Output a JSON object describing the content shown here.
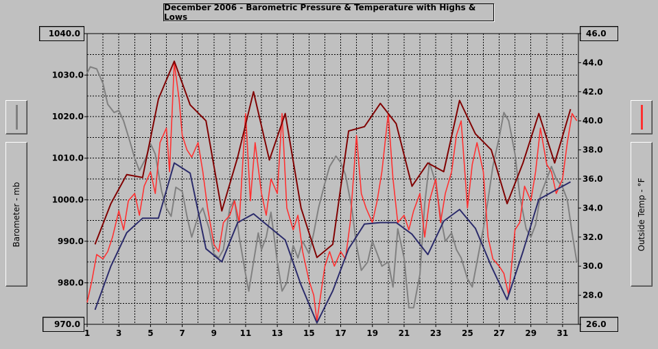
{
  "chart_data": {
    "type": "line",
    "title": "December 2006 - Barometric Pressure & Temperature with Highs & Lows",
    "left_axis": {
      "label": "Barometer - mb",
      "ylim": [
        970,
        1040
      ],
      "ticks": [
        "970.0",
        "980.0",
        "990.0",
        "1000.0",
        "1010.0",
        "1020.0",
        "1030.0",
        "1040.0"
      ],
      "tick_values": [
        970,
        980,
        990,
        1000,
        1010,
        1020,
        1030,
        1040
      ]
    },
    "right_axis": {
      "label": "Outside Temp - °F",
      "ylim": [
        26,
        46
      ],
      "ticks": [
        "26.0",
        "28.0",
        "30.0",
        "32.0",
        "34.0",
        "36.0",
        "38.0",
        "40.0",
        "42.0",
        "44.0",
        "46.0"
      ],
      "tick_values": [
        26,
        28,
        30,
        32,
        34,
        36,
        38,
        40,
        42,
        44,
        46
      ]
    },
    "x_axis": {
      "xlim": [
        1,
        32
      ],
      "ticks": [
        "1",
        "3",
        "5",
        "7",
        "9",
        "11",
        "13",
        "15",
        "17",
        "19",
        "21",
        "23",
        "25",
        "27",
        "29",
        "31"
      ],
      "tick_values": [
        1,
        3,
        5,
        7,
        9,
        11,
        13,
        15,
        17,
        19,
        21,
        23,
        25,
        27,
        29,
        31
      ]
    },
    "grid": true,
    "colors": {
      "barometer": "#808080",
      "temperature": "#ff3030",
      "high": "#800000",
      "low": "#2a2a6a",
      "grid": "#000000"
    },
    "series": [
      {
        "name": "Barometer",
        "axis": "left",
        "points": [
          [
            1.0,
            1030.5
          ],
          [
            1.2,
            1032
          ],
          [
            1.6,
            1031.5
          ],
          [
            2.0,
            1028
          ],
          [
            2.3,
            1023
          ],
          [
            2.7,
            1021
          ],
          [
            3.0,
            1021.5
          ],
          [
            3.3,
            1019
          ],
          [
            3.7,
            1014
          ],
          [
            4.0,
            1010
          ],
          [
            4.3,
            1007
          ],
          [
            4.7,
            1010
          ],
          [
            5.0,
            1013.5
          ],
          [
            5.3,
            1011
          ],
          [
            5.7,
            1002
          ],
          [
            6.0,
            998
          ],
          [
            6.3,
            996
          ],
          [
            6.6,
            1003
          ],
          [
            7.0,
            1002
          ],
          [
            7.3,
            996
          ],
          [
            7.6,
            991
          ],
          [
            8.0,
            996
          ],
          [
            8.3,
            998
          ],
          [
            8.7,
            993
          ],
          [
            9.0,
            987
          ],
          [
            9.3,
            986
          ],
          [
            9.6,
            988
          ],
          [
            10.0,
            998
          ],
          [
            10.3,
            1000
          ],
          [
            10.6,
            991
          ],
          [
            11.0,
            982
          ],
          [
            11.2,
            978
          ],
          [
            11.5,
            985
          ],
          [
            11.8,
            992
          ],
          [
            12.0,
            988
          ],
          [
            12.3,
            991
          ],
          [
            12.6,
            997
          ],
          [
            13.0,
            985
          ],
          [
            13.3,
            978
          ],
          [
            13.6,
            980
          ],
          [
            14.0,
            989
          ],
          [
            14.3,
            986
          ],
          [
            14.6,
            990
          ],
          [
            15.0,
            987
          ],
          [
            15.3,
            992
          ],
          [
            15.6,
            998
          ],
          [
            16.0,
            1004
          ],
          [
            16.3,
            1008
          ],
          [
            16.7,
            1010.5
          ],
          [
            17.0,
            1009
          ],
          [
            17.3,
            1006
          ],
          [
            17.7,
            998
          ],
          [
            18.0,
            989
          ],
          [
            18.3,
            983
          ],
          [
            18.7,
            985
          ],
          [
            19.0,
            990
          ],
          [
            19.3,
            987
          ],
          [
            19.6,
            984
          ],
          [
            20.0,
            985
          ],
          [
            20.3,
            979
          ],
          [
            20.6,
            993
          ],
          [
            21.0,
            986
          ],
          [
            21.3,
            974
          ],
          [
            21.6,
            974
          ],
          [
            22.0,
            982
          ],
          [
            22.3,
            999
          ],
          [
            22.6,
            1009
          ],
          [
            23.0,
            1004
          ],
          [
            23.3,
            996
          ],
          [
            23.6,
            990
          ],
          [
            24.0,
            992
          ],
          [
            24.3,
            988
          ],
          [
            24.6,
            986
          ],
          [
            25.0,
            981
          ],
          [
            25.3,
            979
          ],
          [
            25.6,
            985
          ],
          [
            26.0,
            993
          ],
          [
            26.3,
            1000
          ],
          [
            26.6,
            1008
          ],
          [
            27.0,
            1015
          ],
          [
            27.3,
            1021
          ],
          [
            27.6,
            1019
          ],
          [
            28.0,
            1011
          ],
          [
            28.3,
            1001
          ],
          [
            28.7,
            993
          ],
          [
            29.0,
            991
          ],
          [
            29.3,
            994
          ],
          [
            29.6,
            1001
          ],
          [
            30.0,
            1005
          ],
          [
            30.3,
            1008
          ],
          [
            30.6,
            1005
          ],
          [
            31.0,
            1003
          ],
          [
            31.3,
            1000
          ],
          [
            31.6,
            992
          ],
          [
            31.9,
            985
          ]
        ]
      },
      {
        "name": "Outside Temp",
        "axis": "right",
        "points": [
          [
            1.0,
            27.5
          ],
          [
            1.3,
            29.0
          ],
          [
            1.6,
            30.8
          ],
          [
            2.0,
            30.5
          ],
          [
            2.3,
            31.0
          ],
          [
            2.6,
            32.0
          ],
          [
            3.0,
            33.8
          ],
          [
            3.3,
            32.5
          ],
          [
            3.6,
            34.5
          ],
          [
            4.0,
            35.0
          ],
          [
            4.3,
            33.5
          ],
          [
            4.6,
            35.5
          ],
          [
            5.0,
            36.5
          ],
          [
            5.3,
            35.0
          ],
          [
            5.6,
            38.5
          ],
          [
            6.0,
            39.5
          ],
          [
            6.2,
            36.5
          ],
          [
            6.5,
            44.0
          ],
          [
            6.8,
            41.5
          ],
          [
            7.0,
            39.0
          ],
          [
            7.3,
            38.0
          ],
          [
            7.6,
            37.5
          ],
          [
            8.0,
            38.5
          ],
          [
            8.3,
            36.5
          ],
          [
            8.6,
            34.0
          ],
          [
            9.0,
            31.5
          ],
          [
            9.3,
            31.0
          ],
          [
            9.6,
            33.0
          ],
          [
            10.0,
            33.5
          ],
          [
            10.3,
            34.5
          ],
          [
            10.6,
            33.0
          ],
          [
            11.0,
            40.5
          ],
          [
            11.3,
            34.5
          ],
          [
            11.6,
            38.5
          ],
          [
            12.0,
            35.0
          ],
          [
            12.3,
            33.5
          ],
          [
            12.6,
            36.0
          ],
          [
            13.0,
            35.0
          ],
          [
            13.3,
            40.5
          ],
          [
            13.6,
            34.0
          ],
          [
            14.0,
            32.5
          ],
          [
            14.3,
            33.5
          ],
          [
            14.6,
            31.0
          ],
          [
            15.0,
            29.0
          ],
          [
            15.3,
            28.0
          ],
          [
            15.5,
            26.2
          ],
          [
            15.8,
            28.5
          ],
          [
            16.0,
            30.0
          ],
          [
            16.3,
            31.0
          ],
          [
            16.6,
            30.0
          ],
          [
            17.0,
            31.0
          ],
          [
            17.3,
            30.5
          ],
          [
            17.6,
            33.0
          ],
          [
            18.0,
            39.0
          ],
          [
            18.3,
            35.0
          ],
          [
            18.6,
            34.0
          ],
          [
            19.0,
            33.0
          ],
          [
            19.3,
            34.5
          ],
          [
            19.6,
            36.5
          ],
          [
            20.0,
            40.5
          ],
          [
            20.3,
            36.0
          ],
          [
            20.6,
            33.0
          ],
          [
            21.0,
            33.5
          ],
          [
            21.3,
            32.5
          ],
          [
            21.6,
            33.8
          ],
          [
            22.0,
            35.0
          ],
          [
            22.3,
            32.0
          ],
          [
            22.6,
            34.5
          ],
          [
            23.0,
            36.0
          ],
          [
            23.3,
            33.0
          ],
          [
            23.6,
            35.0
          ],
          [
            24.0,
            36.5
          ],
          [
            24.3,
            39.0
          ],
          [
            24.6,
            40.0
          ],
          [
            25.0,
            34.0
          ],
          [
            25.3,
            37.0
          ],
          [
            25.6,
            38.5
          ],
          [
            26.0,
            36.5
          ],
          [
            26.3,
            32.0
          ],
          [
            26.6,
            30.5
          ],
          [
            27.0,
            30.0
          ],
          [
            27.3,
            29.5
          ],
          [
            27.6,
            28.0
          ],
          [
            28.0,
            32.5
          ],
          [
            28.3,
            33.0
          ],
          [
            28.6,
            35.5
          ],
          [
            29.0,
            34.5
          ],
          [
            29.3,
            36.5
          ],
          [
            29.6,
            39.5
          ],
          [
            30.0,
            37.0
          ],
          [
            30.3,
            36.5
          ],
          [
            30.6,
            35.0
          ],
          [
            31.0,
            36.0
          ],
          [
            31.3,
            38.5
          ],
          [
            31.6,
            40.5
          ],
          [
            31.9,
            40.0
          ]
        ]
      },
      {
        "name": "High Temp",
        "axis": "right",
        "points": [
          [
            1.5,
            31.5
          ],
          [
            2.5,
            34.3
          ],
          [
            3.5,
            36.3
          ],
          [
            4.5,
            36.1
          ],
          [
            5.5,
            41.5
          ],
          [
            6.5,
            44.1
          ],
          [
            7.5,
            41.1
          ],
          [
            8.5,
            40.0
          ],
          [
            9.5,
            33.8
          ],
          [
            10.5,
            37.5
          ],
          [
            11.5,
            42.0
          ],
          [
            12.5,
            37.3
          ],
          [
            13.5,
            40.5
          ],
          [
            14.5,
            34.0
          ],
          [
            15.5,
            30.6
          ],
          [
            16.5,
            31.5
          ],
          [
            17.5,
            39.3
          ],
          [
            18.5,
            39.6
          ],
          [
            19.5,
            41.2
          ],
          [
            20.5,
            39.8
          ],
          [
            21.5,
            35.5
          ],
          [
            22.5,
            37.1
          ],
          [
            23.5,
            36.5
          ],
          [
            24.5,
            41.4
          ],
          [
            25.5,
            39.1
          ],
          [
            26.5,
            38.0
          ],
          [
            27.5,
            34.3
          ],
          [
            28.5,
            37.1
          ],
          [
            29.5,
            40.5
          ],
          [
            30.5,
            37.1
          ],
          [
            31.5,
            40.8
          ]
        ]
      },
      {
        "name": "Low Temp",
        "axis": "right",
        "points": [
          [
            1.5,
            27.0
          ],
          [
            2.5,
            30.0
          ],
          [
            3.5,
            32.3
          ],
          [
            4.5,
            33.3
          ],
          [
            5.5,
            33.3
          ],
          [
            6.5,
            37.1
          ],
          [
            7.5,
            36.4
          ],
          [
            8.5,
            31.2
          ],
          [
            9.5,
            30.3
          ],
          [
            10.5,
            33.0
          ],
          [
            11.5,
            33.6
          ],
          [
            12.5,
            32.7
          ],
          [
            13.5,
            31.8
          ],
          [
            14.5,
            28.7
          ],
          [
            15.5,
            26.1
          ],
          [
            16.5,
            28.3
          ],
          [
            17.5,
            31.2
          ],
          [
            18.5,
            32.9
          ],
          [
            19.5,
            33.0
          ],
          [
            20.5,
            33.0
          ],
          [
            21.5,
            32.2
          ],
          [
            22.5,
            30.8
          ],
          [
            23.5,
            33.1
          ],
          [
            24.5,
            33.9
          ],
          [
            25.5,
            32.6
          ],
          [
            26.5,
            30.0
          ],
          [
            27.5,
            27.7
          ],
          [
            28.5,
            31.0
          ],
          [
            29.5,
            34.6
          ],
          [
            30.5,
            35.2
          ],
          [
            31.5,
            35.8
          ]
        ]
      }
    ]
  }
}
